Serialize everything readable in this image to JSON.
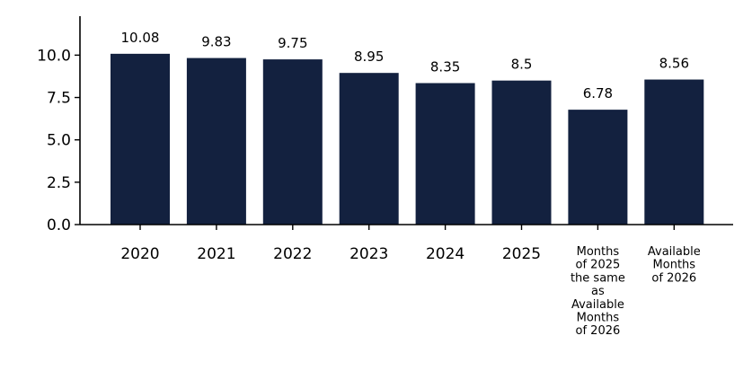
{
  "chart_data": {
    "type": "bar",
    "categories": [
      "2020",
      "2021",
      "2022",
      "2023",
      "2024",
      "2025",
      "Months of 2025 the same as Available Months of 2026",
      "Available Months of 2026"
    ],
    "category_label_lines": [
      [
        "2020"
      ],
      [
        "2021"
      ],
      [
        "2022"
      ],
      [
        "2023"
      ],
      [
        "2024"
      ],
      [
        "2025"
      ],
      [
        "Months",
        "of 2025",
        "the same",
        "as",
        "Available",
        "Months",
        "of 2026"
      ],
      [
        "Available",
        "Months",
        "of 2026"
      ]
    ],
    "values": [
      10.08,
      9.83,
      9.75,
      8.95,
      8.35,
      8.5,
      6.78,
      8.56
    ],
    "data_labels": [
      "10.08",
      "9.83",
      "9.75",
      "8.95",
      "8.35",
      "8.5",
      "6.78",
      "8.56"
    ],
    "title": "",
    "xlabel": "",
    "ylabel": "",
    "ylim": [
      0,
      12.3
    ],
    "yticks": [
      0.0,
      2.5,
      5.0,
      7.5,
      10.0
    ],
    "ytick_labels": [
      "0.0",
      "2.5",
      "5.0",
      "7.5",
      "10.0"
    ],
    "grid": false,
    "legend": "none",
    "bar_color": "#13213f"
  }
}
